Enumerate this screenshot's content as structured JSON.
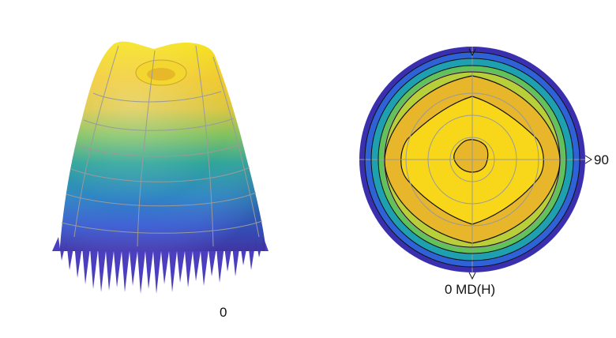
{
  "left_panel": {
    "axis_label": "0"
  },
  "right_panel": {
    "right_label": "90",
    "bottom_label": "0 MD(H)"
  },
  "colors": {
    "dark_blue": "#3a2fae",
    "blue": "#2e62d6",
    "teal": "#1fa0b0",
    "green": "#62c25a",
    "yellow_green": "#b8cf3a",
    "orange": "#e7b62b",
    "yellow": "#f8d71b",
    "grid": "#9a9a9a",
    "contour": "#111111"
  }
}
